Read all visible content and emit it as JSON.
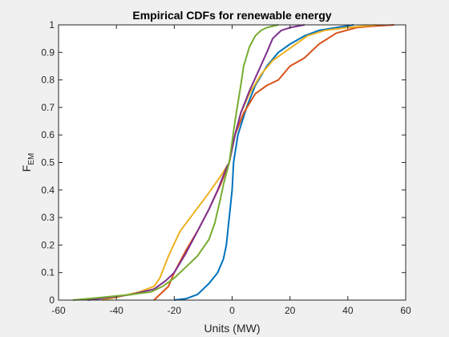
{
  "chart_data": {
    "type": "line",
    "title": "Empirical CDFs for renewable energy",
    "xlabel": "Units (MW)",
    "ylabel_main": "F",
    "ylabel_sub": "EM",
    "xlim": [
      -60,
      60
    ],
    "ylim": [
      0,
      1
    ],
    "x_ticks": [
      -60,
      -40,
      -20,
      0,
      20,
      40,
      60
    ],
    "y_ticks": [
      0,
      0.1,
      0.2,
      0.3,
      0.4,
      0.5,
      0.6,
      0.7,
      0.8,
      0.9,
      1
    ],
    "x_tick_labels": [
      "-60",
      "-40",
      "-20",
      "0",
      "20",
      "40",
      "60"
    ],
    "y_tick_labels": [
      "0",
      "0.1",
      "0.2",
      "0.3",
      "0.4",
      "0.5",
      "0.6",
      "0.7",
      "0.8",
      "0.9",
      "1"
    ],
    "grid": false,
    "legend": "none",
    "series": [
      {
        "color": "#0072BD",
        "points": [
          [
            -20,
            0
          ],
          [
            -16,
            0.005
          ],
          [
            -12,
            0.02
          ],
          [
            -8,
            0.06
          ],
          [
            -5,
            0.1
          ],
          [
            -3,
            0.15
          ],
          [
            -2,
            0.2
          ],
          [
            -1,
            0.3
          ],
          [
            0,
            0.4
          ],
          [
            0.5,
            0.5
          ],
          [
            2,
            0.6
          ],
          [
            5,
            0.7
          ],
          [
            8,
            0.78
          ],
          [
            12,
            0.85
          ],
          [
            16,
            0.9
          ],
          [
            20,
            0.93
          ],
          [
            25,
            0.96
          ],
          [
            30,
            0.98
          ],
          [
            36,
            0.99
          ],
          [
            42,
            1
          ]
        ]
      },
      {
        "color": "#D95319",
        "points": [
          [
            -27,
            0
          ],
          [
            -25,
            0.02
          ],
          [
            -22,
            0.05
          ],
          [
            -20,
            0.1
          ],
          [
            -16,
            0.18
          ],
          [
            -12,
            0.25
          ],
          [
            -8,
            0.33
          ],
          [
            -4,
            0.42
          ],
          [
            -1,
            0.5
          ],
          [
            1,
            0.6
          ],
          [
            4,
            0.68
          ],
          [
            8,
            0.75
          ],
          [
            12,
            0.78
          ],
          [
            16,
            0.8
          ],
          [
            20,
            0.85
          ],
          [
            25,
            0.88
          ],
          [
            30,
            0.93
          ],
          [
            36,
            0.97
          ],
          [
            43,
            0.99
          ],
          [
            48,
            0.995
          ],
          [
            56,
            1
          ]
        ]
      },
      {
        "color": "#EDB120",
        "points": [
          [
            -45,
            0
          ],
          [
            -40,
            0.01
          ],
          [
            -32,
            0.03
          ],
          [
            -27,
            0.05
          ],
          [
            -25,
            0.08
          ],
          [
            -22,
            0.16
          ],
          [
            -18,
            0.25
          ],
          [
            -13,
            0.32
          ],
          [
            -8,
            0.39
          ],
          [
            -4,
            0.45
          ],
          [
            -1,
            0.5
          ],
          [
            1,
            0.6
          ],
          [
            3,
            0.68
          ],
          [
            6,
            0.75
          ],
          [
            10,
            0.82
          ],
          [
            14,
            0.87
          ],
          [
            18,
            0.9
          ],
          [
            22,
            0.93
          ],
          [
            26,
            0.96
          ],
          [
            32,
            0.98
          ],
          [
            40,
            0.99
          ],
          [
            50,
            1
          ]
        ]
      },
      {
        "color": "#7E2F8E",
        "points": [
          [
            -50,
            0
          ],
          [
            -42,
            0.01
          ],
          [
            -35,
            0.02
          ],
          [
            -27,
            0.04
          ],
          [
            -23,
            0.07
          ],
          [
            -20,
            0.1
          ],
          [
            -16,
            0.17
          ],
          [
            -12,
            0.25
          ],
          [
            -8,
            0.33
          ],
          [
            -5,
            0.4
          ],
          [
            -2,
            0.48
          ],
          [
            -1,
            0.5
          ],
          [
            1,
            0.6
          ],
          [
            3,
            0.68
          ],
          [
            6,
            0.76
          ],
          [
            9,
            0.83
          ],
          [
            12,
            0.9
          ],
          [
            14,
            0.95
          ],
          [
            17,
            0.98
          ],
          [
            20,
            0.99
          ],
          [
            25,
            1
          ]
        ]
      },
      {
        "color": "#77AC30",
        "points": [
          [
            -55,
            0
          ],
          [
            -45,
            0.01
          ],
          [
            -35,
            0.02
          ],
          [
            -28,
            0.03
          ],
          [
            -24,
            0.05
          ],
          [
            -20,
            0.08
          ],
          [
            -16,
            0.12
          ],
          [
            -12,
            0.16
          ],
          [
            -8,
            0.22
          ],
          [
            -6,
            0.28
          ],
          [
            -4,
            0.37
          ],
          [
            -3,
            0.42
          ],
          [
            -1,
            0.5
          ],
          [
            1,
            0.65
          ],
          [
            3,
            0.78
          ],
          [
            4,
            0.85
          ],
          [
            6,
            0.92
          ],
          [
            8,
            0.96
          ],
          [
            10,
            0.98
          ],
          [
            12,
            0.99
          ],
          [
            16,
            1
          ]
        ]
      }
    ]
  }
}
